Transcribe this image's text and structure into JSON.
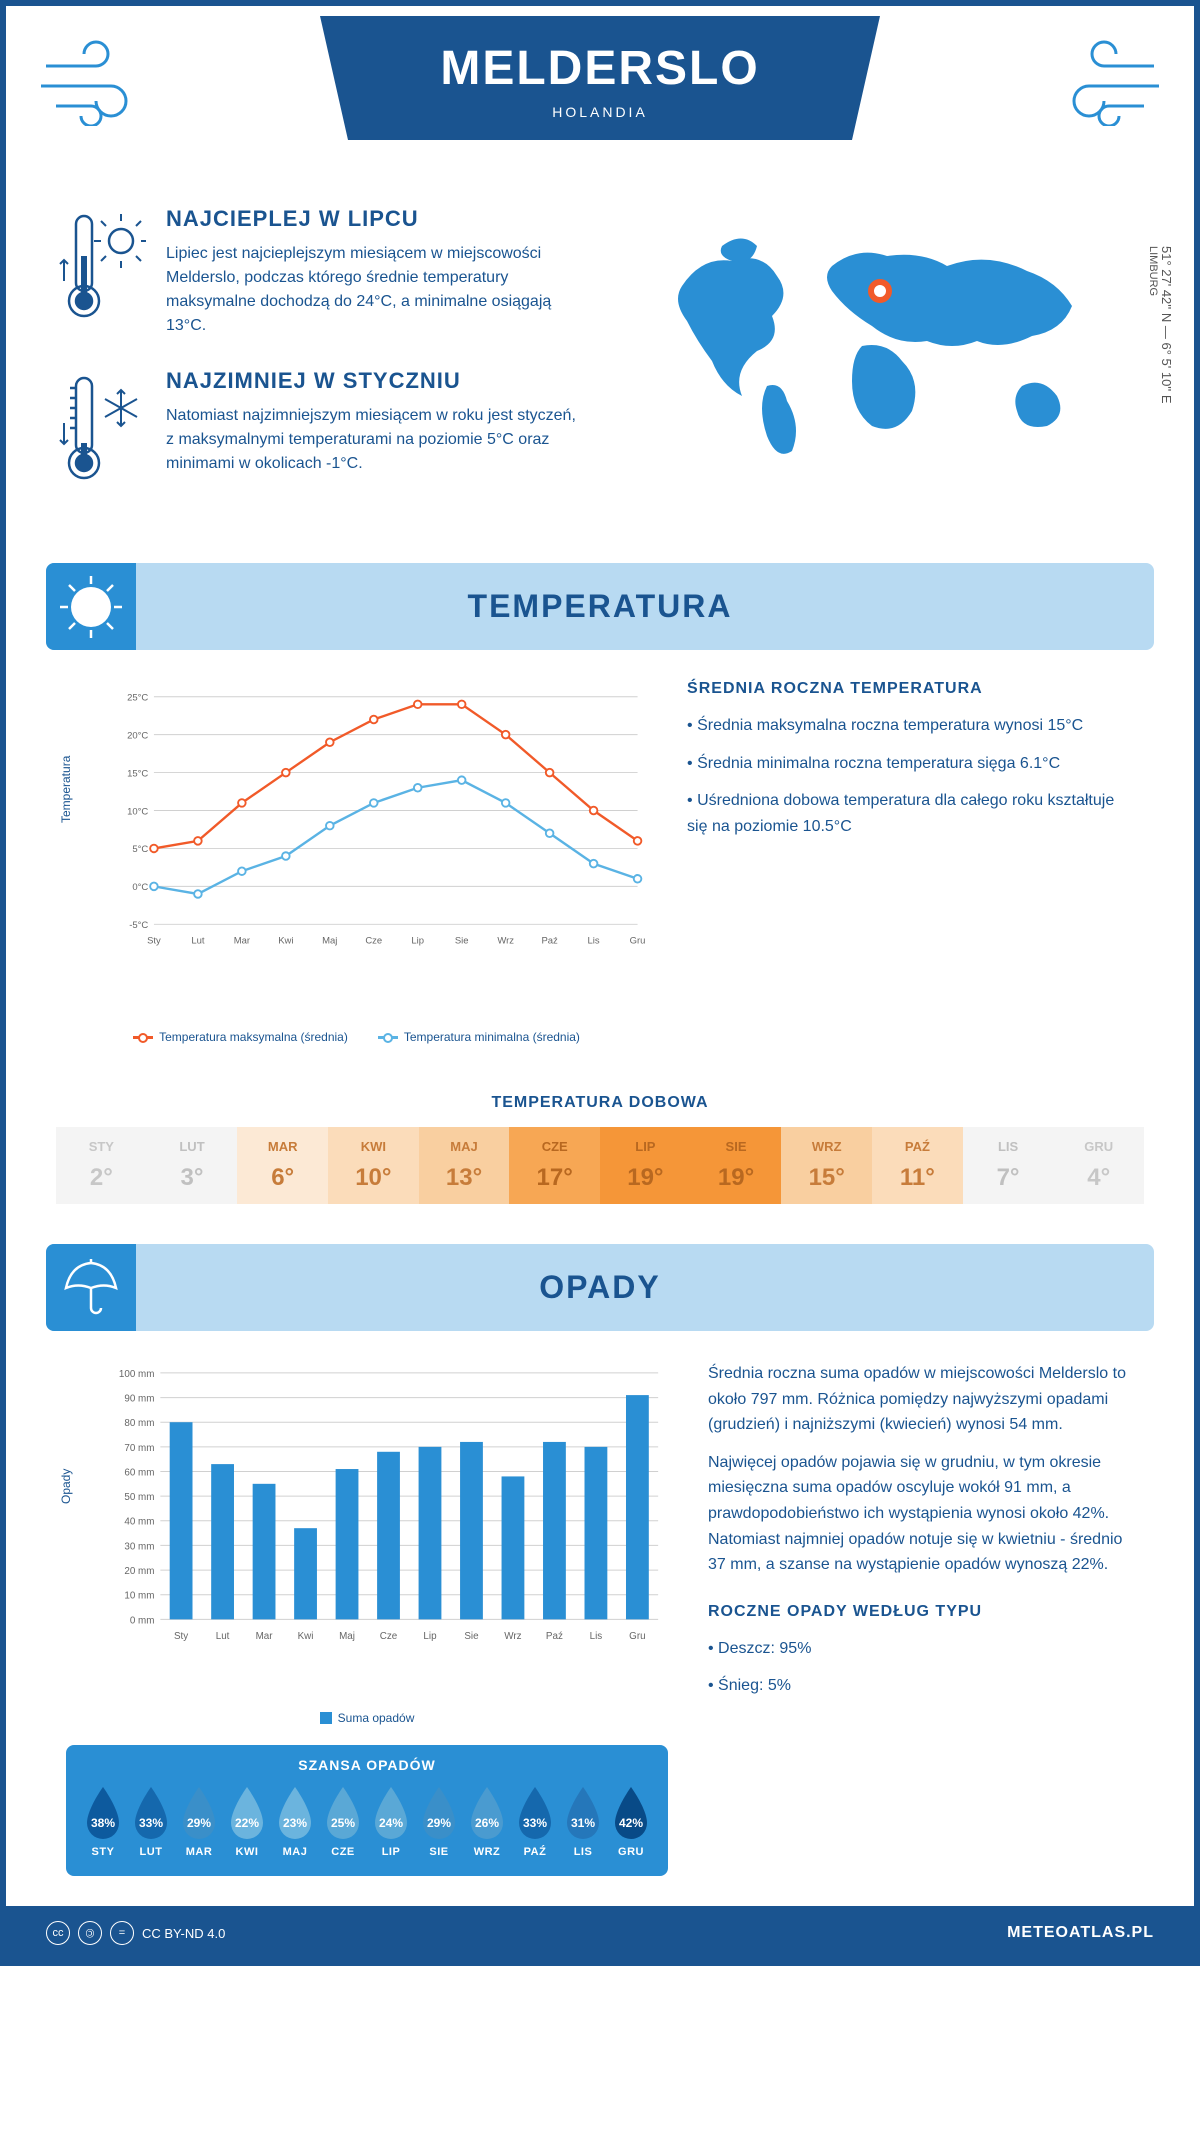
{
  "header": {
    "title": "MELDERSLO",
    "subtitle": "HOLANDIA"
  },
  "coords": {
    "text": "51° 27' 42'' N — 6° 5' 10'' E",
    "region": "LIMBURG"
  },
  "warmest": {
    "heading": "NAJCIEPLEJ W LIPCU",
    "text": "Lipiec jest najcieplejszym miesiącem w miejscowości Melderslo, podczas którego średnie temperatury maksymalne dochodzą do 24°C, a minimalne osiągają 13°C."
  },
  "coldest": {
    "heading": "NAJZIMNIEJ W STYCZNIU",
    "text": "Natomiast najzimniejszym miesiącem w roku jest styczeń, z maksymalnymi temperaturami na poziomie 5°C oraz minimami w okolicach -1°C."
  },
  "temperature_section": {
    "title": "TEMPERATURA",
    "chart": {
      "type": "line",
      "months": [
        "Sty",
        "Lut",
        "Mar",
        "Kwi",
        "Maj",
        "Cze",
        "Lip",
        "Sie",
        "Wrz",
        "Paź",
        "Lis",
        "Gru"
      ],
      "max_series": {
        "label": "Temperatura maksymalna (średnia)",
        "color": "#f15a29",
        "values": [
          5,
          6,
          11,
          15,
          19,
          22,
          24,
          24,
          20,
          15,
          10,
          6
        ]
      },
      "min_series": {
        "label": "Temperatura minimalna (średnia)",
        "color": "#5ab3e4",
        "values": [
          0,
          -1,
          2,
          4,
          8,
          11,
          13,
          14,
          11,
          7,
          3,
          1
        ]
      },
      "ylim": [
        -5,
        25
      ],
      "ytick_step": 5,
      "yaxis_label": "Temperatura",
      "grid_color": "#d0d0d0",
      "background": "#ffffff"
    },
    "side": {
      "heading": "ŚREDNIA ROCZNA TEMPERATURA",
      "bullets": [
        "• Średnia maksymalna roczna temperatura wynosi 15°C",
        "• Średnia minimalna roczna temperatura sięga 6.1°C",
        "• Uśredniona dobowa temperatura dla całego roku kształtuje się na poziomie 10.5°C"
      ]
    },
    "daily": {
      "title": "TEMPERATURA DOBOWA",
      "months": [
        "STY",
        "LUT",
        "MAR",
        "KWI",
        "MAJ",
        "CZE",
        "LIP",
        "SIE",
        "WRZ",
        "PAŹ",
        "LIS",
        "GRU"
      ],
      "values": [
        "2°",
        "3°",
        "6°",
        "10°",
        "13°",
        "17°",
        "19°",
        "19°",
        "15°",
        "11°",
        "7°",
        "4°"
      ],
      "text_colors": [
        "#c7c7c7",
        "#c0c0c0",
        "#c77c3a",
        "#c77c3a",
        "#c77c3a",
        "#b86820",
        "#b86820",
        "#b86820",
        "#c77c3a",
        "#c77c3a",
        "#c0c0c0",
        "#c7c7c7"
      ],
      "bg_colors": [
        "#f4f4f4",
        "#f4f4f4",
        "#fce9d5",
        "#fbdcba",
        "#f9cfa0",
        "#f7a754",
        "#f59638",
        "#f59638",
        "#f9cfa0",
        "#fbdcba",
        "#f4f4f4",
        "#f4f4f4"
      ]
    }
  },
  "precipitation_section": {
    "title": "OPADY",
    "chart": {
      "type": "bar",
      "months": [
        "Sty",
        "Lut",
        "Mar",
        "Kwi",
        "Maj",
        "Cze",
        "Lip",
        "Sie",
        "Wrz",
        "Paź",
        "Lis",
        "Gru"
      ],
      "values": [
        80,
        63,
        55,
        37,
        61,
        68,
        70,
        72,
        58,
        72,
        70,
        91
      ],
      "bar_color": "#2a8fd4",
      "ylim": [
        0,
        100
      ],
      "ytick_step": 10,
      "yaxis_label": "Opady",
      "legend_label": "Suma opadów",
      "grid_color": "#d0d0d0"
    },
    "side": {
      "para1": "Średnia roczna suma opadów w miejscowości Melderslo to około 797 mm. Różnica pomiędzy najwyższymi opadami (grudzień) i najniższymi (kwiecień) wynosi 54 mm.",
      "para2": "Najwięcej opadów pojawia się w grudniu, w tym okresie miesięczna suma opadów oscyluje wokół 91 mm, a prawdopodobieństwo ich wystąpienia wynosi około 42%. Natomiast najmniej opadów notuje się w kwietniu - średnio 37 mm, a szanse na wystąpienie opadów wynoszą 22%.",
      "type_heading": "ROCZNE OPADY WEDŁUG TYPU",
      "types": [
        "• Deszcz: 95%",
        "• Śnieg: 5%"
      ]
    },
    "chance": {
      "title": "SZANSA OPADÓW",
      "months": [
        "STY",
        "LUT",
        "MAR",
        "KWI",
        "MAJ",
        "CZE",
        "LIP",
        "SIE",
        "WRZ",
        "PAŹ",
        "LIS",
        "GRU"
      ],
      "values": [
        "38%",
        "33%",
        "29%",
        "22%",
        "23%",
        "25%",
        "24%",
        "29%",
        "26%",
        "33%",
        "31%",
        "42%"
      ],
      "drop_colors": [
        "#0d5a9e",
        "#1568ad",
        "#3a8fc9",
        "#6bb4de",
        "#6bb4de",
        "#5aa8d6",
        "#5aa8d6",
        "#3a8fc9",
        "#4a9bd0",
        "#1568ad",
        "#2577ba",
        "#084a87"
      ]
    }
  },
  "footer": {
    "license": "CC BY-ND 4.0",
    "site": "METEOATLAS.PL"
  }
}
